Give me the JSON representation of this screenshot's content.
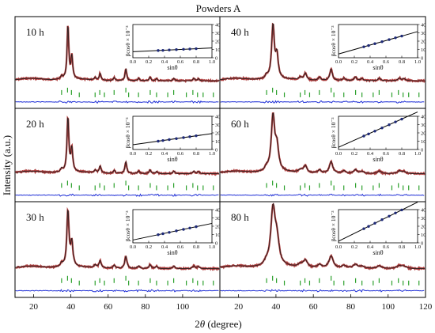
{
  "figure": {
    "title": "Powders A",
    "ylabel": "Intensity (a.u.)",
    "xlabel_prefix": "2",
    "xlabel_theta": "θ",
    "xlabel_suffix": " (degree)",
    "x_ticks": [
      "20",
      "40",
      "60",
      "80",
      "100",
      "120"
    ],
    "x_range": [
      10,
      120
    ]
  },
  "colors": {
    "observed": "#a52a2a",
    "calculated": "#1a1a1a",
    "difference": "#1f2fd6",
    "reflections": "#2ca02c",
    "fit_line": "#000000",
    "fit_points": "#1e2a78"
  },
  "chart_data": [
    {
      "type": "line",
      "label": "10 h",
      "peak_width": 0.55,
      "inset": {
        "type": "scatter",
        "ylabel": "βcosθ × 10⁻³",
        "xlabel": "sinθ",
        "x_ticks": [
          "0.0",
          "0.2",
          "0.4",
          "0.6",
          "0.8",
          "1.0"
        ],
        "y_ticks": [
          "0",
          "10",
          "20",
          "30",
          "40"
        ],
        "xlim": [
          0,
          1
        ],
        "ylim": [
          0,
          40
        ],
        "points": {
          "x": [
            0.32,
            0.38,
            0.46,
            0.55,
            0.64,
            0.72,
            0.8
          ],
          "y": [
            8.7,
            8.9,
            9.3,
            9.8,
            10.2,
            10.5,
            10.9
          ]
        },
        "fit": {
          "intercept": 7.3,
          "slope": 4.5
        }
      }
    },
    {
      "type": "line",
      "label": "40 h",
      "peak_width": 0.85,
      "inset": {
        "type": "scatter",
        "ylabel": "βcosθ × 10⁻³",
        "xlabel": "sinθ",
        "x_ticks": [
          "0.0",
          "0.2",
          "0.4",
          "0.6",
          "0.8",
          "1.0"
        ],
        "y_ticks": [
          "0",
          "10",
          "20",
          "30",
          "40"
        ],
        "xlim": [
          0,
          1
        ],
        "ylim": [
          0,
          40
        ],
        "points": {
          "x": [
            0.32,
            0.38,
            0.46,
            0.55,
            0.64,
            0.72,
            0.8
          ],
          "y": [
            13.2,
            14.7,
            16.9,
            19.3,
            21.8,
            24.0,
            26.1
          ]
        },
        "fit": {
          "intercept": 4.5,
          "slope": 27
        }
      }
    },
    {
      "type": "line",
      "label": "20 h",
      "peak_width": 0.6,
      "inset": {
        "type": "scatter",
        "ylabel": "βcosθ × 10⁻³",
        "xlabel": "sinθ",
        "x_ticks": [
          "0.0",
          "0.2",
          "0.4",
          "0.6",
          "0.8",
          "1.0"
        ],
        "y_ticks": [
          "0",
          "10",
          "20",
          "30",
          "40"
        ],
        "xlim": [
          0,
          1
        ],
        "ylim": [
          0,
          40
        ],
        "points": {
          "x": [
            0.32,
            0.38,
            0.46,
            0.55,
            0.64,
            0.72,
            0.8
          ],
          "y": [
            10.0,
            10.8,
            11.9,
            13.1,
            14.3,
            15.4,
            16.5
          ]
        },
        "fit": {
          "intercept": 5.7,
          "slope": 13.5
        }
      }
    },
    {
      "type": "line",
      "label": "60 h",
      "peak_width": 1.1,
      "inset": {
        "type": "scatter",
        "ylabel": "βcosθ × 10⁻³",
        "xlabel": "sinθ",
        "x_ticks": [
          "0.0",
          "0.2",
          "0.4",
          "0.6",
          "0.8",
          "1.0"
        ],
        "y_ticks": [
          "0",
          "10",
          "20",
          "30",
          "40"
        ],
        "xlim": [
          0,
          1
        ],
        "ylim": [
          0,
          40
        ],
        "points": {
          "x": [
            0.32,
            0.38,
            0.46,
            0.55,
            0.64,
            0.72,
            0.8
          ],
          "y": [
            16.2,
            18.7,
            22.1,
            26.0,
            29.8,
            33.2,
            36.6
          ]
        },
        "fit": {
          "intercept": 2.7,
          "slope": 42.5
        }
      }
    },
    {
      "type": "line",
      "label": "30 h",
      "peak_width": 0.7,
      "inset": {
        "type": "scatter",
        "ylabel": "βcosθ × 10⁻³",
        "xlabel": "sinθ",
        "x_ticks": [
          "0.0",
          "0.2",
          "0.4",
          "0.6",
          "0.8",
          "1.0"
        ],
        "y_ticks": [
          "0",
          "10",
          "20",
          "30",
          "40"
        ],
        "xlim": [
          0,
          1
        ],
        "ylim": [
          0,
          40
        ],
        "points": {
          "x": [
            0.32,
            0.38,
            0.46,
            0.55,
            0.64,
            0.72,
            0.8
          ],
          "y": [
            9.8,
            11.0,
            12.6,
            14.4,
            16.2,
            17.8,
            19.4
          ]
        },
        "fit": {
          "intercept": 3.4,
          "slope": 20
        }
      }
    },
    {
      "type": "line",
      "label": "80 h",
      "peak_width": 1.4,
      "inset": {
        "type": "scatter",
        "ylabel": "βcosθ × 10⁻³",
        "xlabel": "sinθ",
        "x_ticks": [
          "0.0",
          "0.2",
          "0.4",
          "0.6",
          "0.8",
          "1.0"
        ],
        "y_ticks": [
          "0",
          "10",
          "20",
          "30",
          "40"
        ],
        "xlim": [
          0,
          1
        ],
        "ylim": [
          0,
          40
        ],
        "points": {
          "x": [
            0.32,
            0.38,
            0.46,
            0.55,
            0.64,
            0.72,
            0.8
          ],
          "y": [
            17.0,
            19.8,
            23.6,
            27.9,
            32.1,
            35.9,
            39.6
          ]
        },
        "fit": {
          "intercept": 2.0,
          "slope": 47
        }
      }
    }
  ],
  "reflections": [
    {
      "x": 35.0,
      "level": 1
    },
    {
      "x": 38.2,
      "level": 0
    },
    {
      "x": 40.3,
      "level": 1
    },
    {
      "x": 44.5,
      "level": 2
    },
    {
      "x": 53.0,
      "level": 2
    },
    {
      "x": 55.5,
      "level": 1
    },
    {
      "x": 58.0,
      "level": 2
    },
    {
      "x": 63.2,
      "level": 1
    },
    {
      "x": 69.5,
      "level": 0
    },
    {
      "x": 71.0,
      "level": 2
    },
    {
      "x": 76.3,
      "level": 2
    },
    {
      "x": 82.6,
      "level": 1
    },
    {
      "x": 86.0,
      "level": 2
    },
    {
      "x": 92.0,
      "level": 2
    },
    {
      "x": 95.2,
      "level": 1
    },
    {
      "x": 102.0,
      "level": 2
    },
    {
      "x": 105.5,
      "level": 1
    },
    {
      "x": 108.0,
      "level": 2
    },
    {
      "x": 111.0,
      "level": 2
    },
    {
      "x": 116.5,
      "level": 2
    }
  ],
  "peaks": [
    {
      "x": 35.0,
      "h": 0.06
    },
    {
      "x": 38.4,
      "h": 1.0
    },
    {
      "x": 40.5,
      "h": 0.42
    },
    {
      "x": 53.0,
      "h": 0.05
    },
    {
      "x": 55.7,
      "h": 0.13
    },
    {
      "x": 63.3,
      "h": 0.06
    },
    {
      "x": 69.5,
      "h": 0.22
    },
    {
      "x": 76.4,
      "h": 0.05
    },
    {
      "x": 82.5,
      "h": 0.07
    },
    {
      "x": 86.0,
      "h": 0.04
    },
    {
      "x": 95.3,
      "h": 0.05
    },
    {
      "x": 106.0,
      "h": 0.05
    },
    {
      "x": 108.5,
      "h": 0.04
    }
  ]
}
